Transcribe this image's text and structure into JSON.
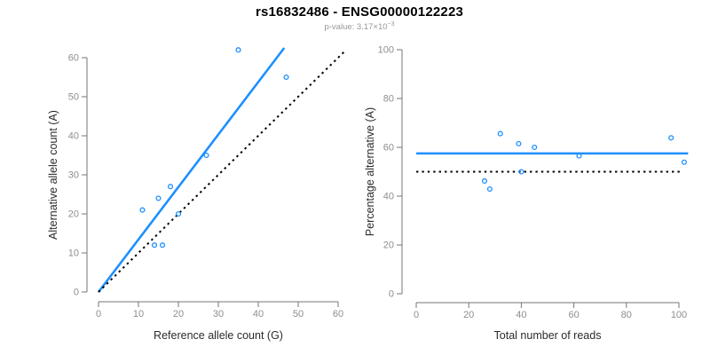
{
  "header": {
    "title": "rs16832486 - ENSG00000122223",
    "pvalue_prefix": "p-value: 3.17×10",
    "pvalue_exponent": "−3"
  },
  "colors": {
    "accent": "#1E8FFF",
    "identity": "#000000",
    "axis": "#757575",
    "tick_label": "#8e8e8e",
    "axis_title": "#2b2b2b",
    "subtitle": "#979797"
  },
  "chart_data": [
    {
      "type": "scatter",
      "name": "allele-count-scatter",
      "xlabel": "Reference allele count (G)",
      "ylabel": "Alternative allele count (A)",
      "xlim": [
        0,
        62
      ],
      "ylim": [
        0,
        62
      ],
      "xticks": [
        0,
        10,
        20,
        30,
        40,
        50,
        60
      ],
      "yticks": [
        0,
        10,
        20,
        30,
        40,
        50,
        60
      ],
      "grid": false,
      "points": [
        [
          11,
          21
        ],
        [
          14,
          12
        ],
        [
          15,
          24
        ],
        [
          16,
          12
        ],
        [
          18,
          27
        ],
        [
          20,
          20
        ],
        [
          27,
          35
        ],
        [
          35,
          62
        ],
        [
          47,
          55
        ]
      ],
      "lines": [
        {
          "name": "fit-line",
          "style": "solid",
          "color_key": "accent",
          "from": [
            0,
            0
          ],
          "to": [
            46.5,
            62.5
          ]
        },
        {
          "name": "identity-line",
          "style": "dotted",
          "color_key": "identity",
          "from": [
            0,
            0
          ],
          "to": [
            62,
            62
          ]
        }
      ]
    },
    {
      "type": "scatter",
      "name": "percentage-vs-reads-scatter",
      "xlabel": "Total number of reads",
      "ylabel": "Percentage alternative (A)",
      "xlim": [
        0,
        104
      ],
      "ylim": [
        0,
        100
      ],
      "xticks": [
        0,
        20,
        40,
        60,
        80,
        100
      ],
      "yticks": [
        0,
        20,
        40,
        60,
        80,
        100
      ],
      "grid": false,
      "points": [
        [
          26,
          46.2
        ],
        [
          28,
          42.9
        ],
        [
          32,
          65.6
        ],
        [
          39,
          61.5
        ],
        [
          40,
          50
        ],
        [
          45,
          60
        ],
        [
          62,
          56.5
        ],
        [
          97,
          63.9
        ],
        [
          102,
          53.9
        ]
      ],
      "lines": [
        {
          "name": "fit-line",
          "style": "solid",
          "color_key": "accent",
          "from": [
            0,
            57.5
          ],
          "to": [
            103.5,
            57.5
          ]
        },
        {
          "name": "identity-line",
          "style": "dotted",
          "color_key": "identity",
          "from": [
            0,
            50
          ],
          "to": [
            101.5,
            50
          ]
        }
      ]
    }
  ]
}
